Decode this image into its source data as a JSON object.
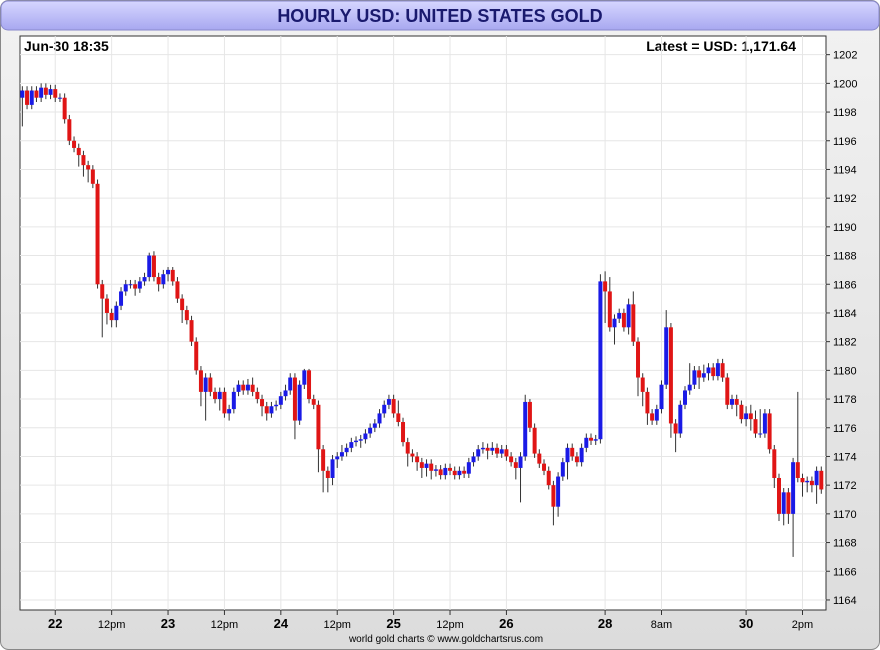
{
  "chart_data": {
    "type": "candlestick",
    "title": "HOURLY USD: UNITED STATES GOLD",
    "timestamp": "Jun-30  18:35",
    "latest": "Latest = USD: 1,171.64",
    "footer": "world gold charts © www.goldchartsrus.com",
    "up_color": "#1a1ae6",
    "down_color": "#e01515",
    "grid": true,
    "ylim": [
      1163.3,
      1203.3
    ],
    "yticks": [
      1164,
      1166,
      1168,
      1170,
      1172,
      1174,
      1176,
      1178,
      1180,
      1182,
      1184,
      1186,
      1188,
      1190,
      1192,
      1194,
      1196,
      1198,
      1200,
      1202
    ],
    "xlim": [
      -0.5,
      171
    ],
    "xticks": [
      {
        "value": 7,
        "label": "22"
      },
      {
        "value": 19,
        "label": "12pm"
      },
      {
        "value": 31,
        "label": "23"
      },
      {
        "value": 43,
        "label": "12pm"
      },
      {
        "value": 55,
        "label": "24"
      },
      {
        "value": 67,
        "label": "12pm"
      },
      {
        "value": 79,
        "label": "25"
      },
      {
        "value": 91,
        "label": "12pm"
      },
      {
        "value": 103,
        "label": "26"
      },
      {
        "value": 124,
        "label": "28"
      },
      {
        "value": 136,
        "label": "8am"
      },
      {
        "value": 154,
        "label": "30"
      },
      {
        "value": 166,
        "label": "2pm"
      }
    ],
    "candles": [
      [
        1199,
        1199.8,
        1197,
        1199.5
      ],
      [
        1199.5,
        1199.8,
        1198.2,
        1198.5
      ],
      [
        1198.5,
        1199.8,
        1198.2,
        1199.5
      ],
      [
        1199.5,
        1199.8,
        1198.7,
        1199
      ],
      [
        1199,
        1200,
        1198.7,
        1199.7
      ],
      [
        1199.7,
        1200,
        1198.9,
        1199.2
      ],
      [
        1199.2,
        1199.9,
        1198.9,
        1199.6
      ],
      [
        1199.6,
        1199.9,
        1198.7,
        1199
      ],
      [
        1199,
        1199.3,
        1198.7,
        1199
      ],
      [
        1199,
        1199.3,
        1197.2,
        1197.5
      ],
      [
        1197.5,
        1197.8,
        1195.7,
        1196
      ],
      [
        1196,
        1196.3,
        1195.2,
        1195.5
      ],
      [
        1195.5,
        1195.8,
        1194.2,
        1195
      ],
      [
        1195,
        1195.3,
        1193.5,
        1194.3
      ],
      [
        1194.3,
        1194.6,
        1193.1,
        1194
      ],
      [
        1194,
        1194.3,
        1192.7,
        1193
      ],
      [
        1193,
        1193.3,
        1185.7,
        1186
      ],
      [
        1186,
        1186.3,
        1182.3,
        1185
      ],
      [
        1185,
        1185.3,
        1183.2,
        1184
      ],
      [
        1184,
        1184.3,
        1183,
        1183.5
      ],
      [
        1183.5,
        1184.8,
        1183,
        1184.5
      ],
      [
        1184.5,
        1185.8,
        1184.2,
        1185.5
      ],
      [
        1185.5,
        1186.3,
        1185.2,
        1186
      ],
      [
        1186,
        1186.3,
        1185.7,
        1186
      ],
      [
        1186,
        1186.3,
        1185.2,
        1185.7
      ],
      [
        1185.7,
        1186.5,
        1185.4,
        1186.2
      ],
      [
        1186.2,
        1186.8,
        1185.9,
        1186.5
      ],
      [
        1186.5,
        1188.2,
        1186.2,
        1188
      ],
      [
        1188,
        1188.3,
        1186.2,
        1186.5
      ],
      [
        1186.5,
        1186.8,
        1185.5,
        1186
      ],
      [
        1186,
        1187,
        1185.7,
        1186.7
      ],
      [
        1186.7,
        1187.2,
        1186.2,
        1187
      ],
      [
        1187,
        1187.2,
        1185.9,
        1186.2
      ],
      [
        1186.2,
        1186.5,
        1184.7,
        1185
      ],
      [
        1185,
        1185.3,
        1183.3,
        1184.2
      ],
      [
        1184.2,
        1184.5,
        1183.2,
        1183.5
      ],
      [
        1183.5,
        1183.8,
        1181.7,
        1182
      ],
      [
        1182,
        1182.3,
        1179.7,
        1180
      ],
      [
        1180,
        1180.3,
        1177.5,
        1178.5
      ],
      [
        1178.5,
        1179.8,
        1176.5,
        1179.5
      ],
      [
        1179.5,
        1179.8,
        1178.2,
        1178.5
      ],
      [
        1178.5,
        1178.8,
        1177.7,
        1178
      ],
      [
        1178,
        1178.8,
        1177.2,
        1178.5
      ],
      [
        1178.5,
        1178.8,
        1176.7,
        1177
      ],
      [
        1177,
        1177.6,
        1176.5,
        1177.3
      ],
      [
        1177.3,
        1178.8,
        1177,
        1178.5
      ],
      [
        1178.5,
        1179.3,
        1178.2,
        1179
      ],
      [
        1179,
        1179.3,
        1178.3,
        1178.6
      ],
      [
        1178.6,
        1179.4,
        1178.3,
        1179
      ],
      [
        1179,
        1179.5,
        1178.2,
        1178.5
      ],
      [
        1178.5,
        1178.8,
        1177.7,
        1178
      ],
      [
        1178,
        1178.3,
        1176.8,
        1177.5
      ],
      [
        1177.5,
        1177.8,
        1176.5,
        1177
      ],
      [
        1177,
        1177.8,
        1176.7,
        1177.5
      ],
      [
        1177.5,
        1177.9,
        1177.2,
        1177.6
      ],
      [
        1177.6,
        1178.5,
        1177.3,
        1178.2
      ],
      [
        1178.2,
        1179,
        1177.9,
        1178.6
      ],
      [
        1178.6,
        1179.8,
        1178.3,
        1179.5
      ],
      [
        1179.5,
        1179.8,
        1175.2,
        1176.5
      ],
      [
        1176.5,
        1179.3,
        1176.2,
        1179
      ],
      [
        1179,
        1180.1,
        1178.7,
        1180
      ],
      [
        1180,
        1180.1,
        1177.7,
        1178
      ],
      [
        1178,
        1178.3,
        1177.3,
        1177.6
      ],
      [
        1177.6,
        1177.9,
        1172.9,
        1174.5
      ],
      [
        1174.5,
        1174.8,
        1171.5,
        1173
      ],
      [
        1173,
        1173.3,
        1171.5,
        1172.5
      ],
      [
        1172.5,
        1174.1,
        1172,
        1173.8
      ],
      [
        1173.8,
        1174.3,
        1173.2,
        1174
      ],
      [
        1174,
        1174.8,
        1173.7,
        1174.3
      ],
      [
        1174.3,
        1174.9,
        1174,
        1174.6
      ],
      [
        1174.6,
        1175.3,
        1174.3,
        1175
      ],
      [
        1175,
        1175.4,
        1174.7,
        1175.1
      ],
      [
        1175.1,
        1175.5,
        1174.6,
        1175.2
      ],
      [
        1175.2,
        1175.9,
        1174.9,
        1175.6
      ],
      [
        1175.6,
        1176.3,
        1175.3,
        1176
      ],
      [
        1176,
        1176.6,
        1175.7,
        1176.3
      ],
      [
        1176.3,
        1177.3,
        1176,
        1177
      ],
      [
        1177,
        1177.9,
        1176.7,
        1177.6
      ],
      [
        1177.6,
        1178.3,
        1177.3,
        1178
      ],
      [
        1178,
        1178.3,
        1176.7,
        1177
      ],
      [
        1177,
        1177.9,
        1176.1,
        1176.4
      ],
      [
        1176.4,
        1176.7,
        1174.7,
        1175
      ],
      [
        1175,
        1175.3,
        1173.3,
        1174.2
      ],
      [
        1174.2,
        1174.5,
        1173.6,
        1174
      ],
      [
        1174,
        1174.3,
        1173,
        1173.6
      ],
      [
        1173.6,
        1173.9,
        1172.5,
        1173.2
      ],
      [
        1173.2,
        1173.8,
        1172.6,
        1173.5
      ],
      [
        1173.5,
        1173.8,
        1172.4,
        1173
      ],
      [
        1173,
        1173.4,
        1172.6,
        1173.1
      ],
      [
        1173.1,
        1173.4,
        1172.4,
        1172.7
      ],
      [
        1172.7,
        1173.5,
        1172.4,
        1173.2
      ],
      [
        1173.2,
        1173.5,
        1172.7,
        1173
      ],
      [
        1173,
        1173.3,
        1172.4,
        1172.7
      ],
      [
        1172.7,
        1173.3,
        1172.4,
        1173
      ],
      [
        1173,
        1173.3,
        1172.5,
        1172.8
      ],
      [
        1172.8,
        1173.9,
        1172.5,
        1173.6
      ],
      [
        1173.6,
        1174.3,
        1173.3,
        1174
      ],
      [
        1174,
        1174.8,
        1173.7,
        1174.5
      ],
      [
        1174.5,
        1175,
        1174.2,
        1174.6
      ],
      [
        1174.6,
        1174.9,
        1173.8,
        1174.4
      ],
      [
        1174.4,
        1175,
        1174.1,
        1174.6
      ],
      [
        1174.6,
        1174.9,
        1173.9,
        1174.2
      ],
      [
        1174.2,
        1174.8,
        1173.9,
        1174.5
      ],
      [
        1174.5,
        1174.8,
        1173.7,
        1174
      ],
      [
        1174,
        1174.3,
        1173.3,
        1173.6
      ],
      [
        1173.6,
        1173.9,
        1172.4,
        1173.2
      ],
      [
        1173.2,
        1174.3,
        1170.8,
        1174
      ],
      [
        1174,
        1178.3,
        1173.7,
        1177.8
      ],
      [
        1177.8,
        1178,
        1175.7,
        1176
      ],
      [
        1176,
        1176.3,
        1173.9,
        1174.2
      ],
      [
        1174.2,
        1174.5,
        1173.2,
        1173.5
      ],
      [
        1173.5,
        1173.8,
        1172.7,
        1173
      ],
      [
        1173,
        1173.3,
        1171.7,
        1172
      ],
      [
        1172,
        1172.3,
        1169.2,
        1170.5
      ],
      [
        1170.5,
        1172.9,
        1169.8,
        1172.6
      ],
      [
        1172.6,
        1173.9,
        1172.3,
        1173.6
      ],
      [
        1173.6,
        1174.9,
        1172.4,
        1174.6
      ],
      [
        1174.6,
        1174.9,
        1173.7,
        1174
      ],
      [
        1174,
        1174.3,
        1173.3,
        1173.6
      ],
      [
        1173.6,
        1174.9,
        1173.3,
        1174.6
      ],
      [
        1174.6,
        1175.6,
        1174.3,
        1175.3
      ],
      [
        1175.3,
        1175.6,
        1174.8,
        1175.1
      ],
      [
        1175.1,
        1175.5,
        1174.8,
        1175.2
      ],
      [
        1175.2,
        1186.7,
        1174.9,
        1186.2
      ],
      [
        1186.2,
        1186.9,
        1183.3,
        1185.5
      ],
      [
        1185.5,
        1186.5,
        1182.7,
        1183
      ],
      [
        1183,
        1183.9,
        1181.8,
        1183.6
      ],
      [
        1183.6,
        1184.3,
        1183.3,
        1184
      ],
      [
        1184,
        1184.3,
        1182.7,
        1183
      ],
      [
        1183,
        1185,
        1182.5,
        1184.6
      ],
      [
        1184.6,
        1185.5,
        1181.7,
        1182
      ],
      [
        1182,
        1182.3,
        1178.2,
        1179.5
      ],
      [
        1179.5,
        1179.8,
        1177.5,
        1178.5
      ],
      [
        1178.5,
        1178.8,
        1176.2,
        1177
      ],
      [
        1177,
        1177.3,
        1176.2,
        1176.5
      ],
      [
        1176.5,
        1177.6,
        1176.2,
        1177.3
      ],
      [
        1177.3,
        1179.3,
        1177,
        1179
      ],
      [
        1179,
        1184.2,
        1178.7,
        1183
      ],
      [
        1183,
        1183.3,
        1175.3,
        1176.3
      ],
      [
        1176.3,
        1176.6,
        1174.3,
        1175.6
      ],
      [
        1175.6,
        1177.9,
        1175.3,
        1177.6
      ],
      [
        1177.6,
        1178.9,
        1177.3,
        1178.6
      ],
      [
        1178.6,
        1180.5,
        1178.3,
        1179
      ],
      [
        1179,
        1180.3,
        1178.7,
        1180
      ],
      [
        1180,
        1180.3,
        1178.7,
        1179.5
      ],
      [
        1179.5,
        1180.4,
        1179.2,
        1179.8
      ],
      [
        1179.8,
        1180.5,
        1179.3,
        1180.2
      ],
      [
        1180.2,
        1180.5,
        1179.3,
        1179.6
      ],
      [
        1179.6,
        1180.8,
        1179.3,
        1180.5
      ],
      [
        1180.5,
        1180.8,
        1179.2,
        1179.5
      ],
      [
        1179.5,
        1179.8,
        1177.3,
        1177.6
      ],
      [
        1177.6,
        1178.3,
        1177.3,
        1178
      ],
      [
        1178,
        1178.3,
        1176.8,
        1177.6
      ],
      [
        1177.6,
        1177.9,
        1176.3,
        1176.6
      ],
      [
        1176.6,
        1177.5,
        1176.1,
        1177
      ],
      [
        1177,
        1177.6,
        1175.8,
        1176.6
      ],
      [
        1176.6,
        1177.2,
        1175.3,
        1175.6
      ],
      [
        1175.6,
        1177.3,
        1175.3,
        1175.6
      ],
      [
        1175.6,
        1177.3,
        1175.3,
        1177
      ],
      [
        1177,
        1177.3,
        1174.2,
        1174.5
      ],
      [
        1174.5,
        1174.8,
        1171.8,
        1172.5
      ],
      [
        1172.5,
        1172.8,
        1169.5,
        1170
      ],
      [
        1170,
        1171.8,
        1169.2,
        1171.5
      ],
      [
        1171.5,
        1171.8,
        1169.3,
        1170
      ],
      [
        1170,
        1173.9,
        1167,
        1173.6
      ],
      [
        1173.6,
        1178.5,
        1172.2,
        1172.5
      ],
      [
        1172.5,
        1172.8,
        1171.2,
        1172.2
      ],
      [
        1172.2,
        1172.6,
        1171.5,
        1172.3
      ],
      [
        1172.3,
        1172.6,
        1171.5,
        1172
      ],
      [
        1172,
        1173.3,
        1170.7,
        1173
      ],
      [
        1173,
        1173.3,
        1171.4,
        1171.7
      ]
    ]
  }
}
